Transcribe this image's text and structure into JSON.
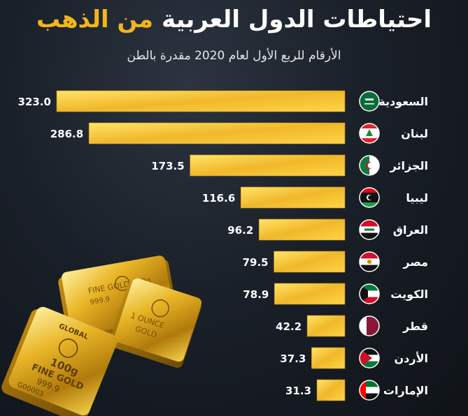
{
  "title": {
    "part1": "احتياطات الدول العربية",
    "part2": "من الذهب"
  },
  "subtitle": "الأرقام للربع الأول لعام 2020 مقدرة بالطن",
  "colors": {
    "bar_light": "#ffd84a",
    "bar_dark": "#e2a513",
    "accent": "#f2b51c",
    "text": "#ffffff"
  },
  "chart_data": {
    "type": "bar",
    "orientation": "horizontal",
    "categories": [
      "السعودية",
      "لبنان",
      "الجزائر",
      "ليبيا",
      "العراق",
      "مصر",
      "الكويت",
      "قطر",
      "الأردن",
      "الإمارات"
    ],
    "values": [
      323.0,
      286.8,
      173.5,
      116.6,
      96.2,
      79.5,
      78.9,
      42.2,
      37.3,
      31.3
    ],
    "value_labels": [
      "323.0",
      "286.8",
      "173.5",
      "116.6",
      "96.2",
      "79.5",
      "78.9",
      "42.2",
      "37.3",
      "31.3"
    ],
    "flags": [
      "saudi-flag-icon",
      "lebanon-flag-icon",
      "algeria-flag-icon",
      "libya-flag-icon",
      "iraq-flag-icon",
      "egypt-flag-icon",
      "kuwait-flag-icon",
      "qatar-flag-icon",
      "jordan-flag-icon",
      "uae-flag-icon"
    ],
    "grid": false,
    "legend": "none"
  },
  "decoration": {
    "bar1_lines": [
      "FINE GOLD",
      "50g",
      "999.9"
    ],
    "bar2_lines": [
      "1 OUNCE",
      "GOLD"
    ],
    "bar3_lines": [
      "GLOBAL",
      "100g",
      "FINE GOLD",
      "999.9",
      "G00003"
    ]
  }
}
